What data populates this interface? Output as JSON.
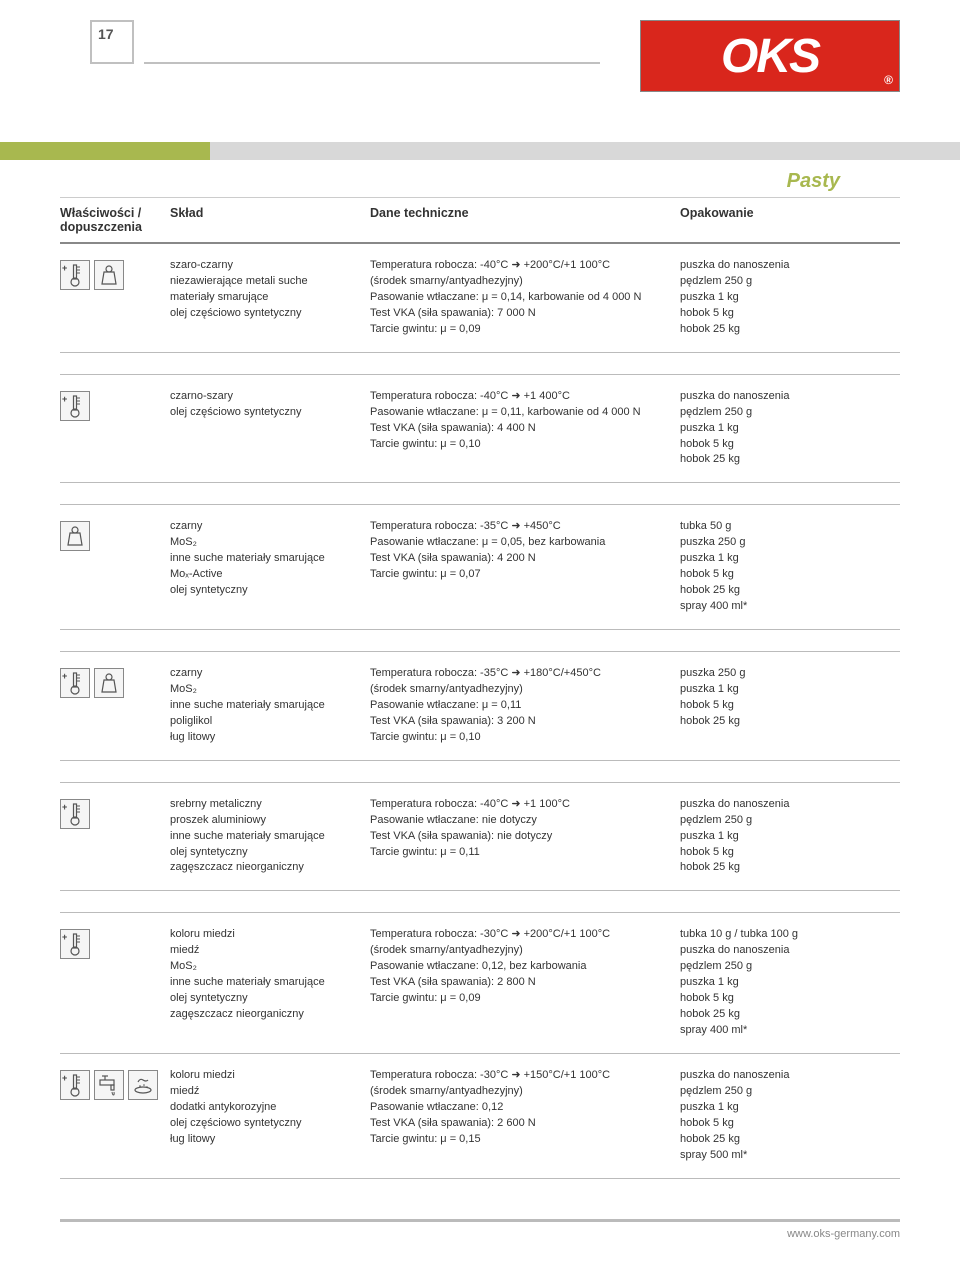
{
  "page_number": "17",
  "logo_text": "OKS",
  "section_title": "Pasty",
  "footer_url": "www.oks-germany.com",
  "colors": {
    "accent_olive": "#a8b84f",
    "accent_gray": "#d8d8d8",
    "logo_bg": "#d9261c",
    "border": "#c0c0c0"
  },
  "headers": {
    "col1": "Właściwości / dopuszczenia",
    "col2": "Skład",
    "col3": "Dane techniczne",
    "col4": "Opakowanie"
  },
  "rows": [
    {
      "icons": [
        "thermo-plus",
        "weight"
      ],
      "sklad": "szaro-czarny\nniezawierające metali suche\nmateriały smarujące\nolej częściowo syntetyczny",
      "dane": "Temperatura robocza: -40°C ➜ +200°C/+1 100°C\n(środek smarny/antyadhezyjny)\nPasowanie wtłaczane: μ = 0,14, karbowanie od 4 000 N\nTest VKA (siła spawania): 7 000 N\nTarcie gwintu: μ = 0,09",
      "opak": "puszka do nanoszenia\npędzlem 250 g\npuszka 1 kg\nhobok 5 kg\nhobok 25 kg"
    },
    {
      "icons": [
        "thermo-plus"
      ],
      "sklad": "czarno-szary\nolej częściowo syntetyczny",
      "dane": "Temperatura robocza: -40°C ➜ +1 400°C\nPasowanie wtłaczane: μ = 0,11, karbowanie od 4 000 N\nTest VKA (siła spawania): 4 400 N\nTarcie gwintu: μ = 0,10",
      "opak": "puszka do nanoszenia\npędzlem 250 g\npuszka 1 kg\nhobok 5 kg\nhobok 25 kg"
    },
    {
      "icons": [
        "weight"
      ],
      "sklad": "czarny\nMoS₂\ninne suche materiały smarujące\nMoₓ-Active\nolej syntetyczny",
      "dane": "Temperatura robocza: -35°C ➜ +450°C\nPasowanie wtłaczane: μ = 0,05, bez karbowania\nTest VKA (siła spawania): 4 200 N\nTarcie gwintu: μ = 0,07",
      "opak": "tubka 50 g\npuszka 250 g\npuszka 1 kg\nhobok 5 kg\nhobok 25 kg\nspray 400 ml*"
    },
    {
      "icons": [
        "thermo-plus",
        "weight"
      ],
      "sklad": "czarny\nMoS₂\ninne suche materiały smarujące\npoliglikol\nług litowy",
      "dane": "Temperatura robocza: -35°C ➜ +180°C/+450°C\n(środek smarny/antyadhezyjny)\nPasowanie wtłaczane: μ = 0,11\nTest VKA (siła spawania): 3 200 N\nTarcie gwintu: μ = 0,10",
      "opak": "puszka 250 g\npuszka 1 kg\nhobok 5 kg\nhobok 25 kg"
    },
    {
      "icons": [
        "thermo-plus"
      ],
      "sklad": "srebrny metaliczny\nproszek aluminiowy\ninne suche materiały smarujące\nolej syntetyczny\nzagęszczacz nieorganiczny",
      "dane": "Temperatura robocza: -40°C ➜ +1 100°C\nPasowanie wtłaczane: nie dotyczy\nTest VKA (siła spawania): nie dotyczy\nTarcie gwintu: μ = 0,11",
      "opak": "puszka do nanoszenia\npędzlem 250 g\npuszka 1 kg\nhobok 5 kg\nhobok 25 kg"
    },
    {
      "icons": [
        "thermo-plus"
      ],
      "sklad": "koloru miedzi\nmiedź\nMoS₂\ninne suche materiały smarujące\nolej syntetyczny\nzagęszczacz nieorganiczny",
      "dane": "Temperatura robocza: -30°C ➜ +200°C/+1 100°C\n(środek smarny/antyadhezyjny)\nPasowanie wtłaczane: 0,12, bez karbowania\nTest VKA (siła spawania): 2 800 N\nTarcie gwintu: μ = 0,09",
      "opak": "tubka 10 g / tubka 100 g\npuszka do nanoszenia\npędzlem 250 g\npuszka 1 kg\nhobok 5 kg\nhobok 25 kg\nspray 400 ml*"
    },
    {
      "icons": [
        "thermo-plus",
        "tap",
        "hand-water"
      ],
      "sklad": "koloru miedzi\nmiedź\ndodatki antykorozyjne\nolej częściowo syntetyczny\nług litowy",
      "dane": "Temperatura robocza: -30°C ➜ +150°C/+1 100°C\n(środek smarny/antyadhezyjny)\nPasowanie wtłaczane: 0,12\nTest VKA (siła spawania): 2 600 N\nTarcie gwintu: μ = 0,15",
      "opak": "puszka do nanoszenia\npędzlem 250 g\npuszka 1 kg\nhobok 5 kg\nhobok 25 kg\nspray 500 ml*"
    }
  ]
}
